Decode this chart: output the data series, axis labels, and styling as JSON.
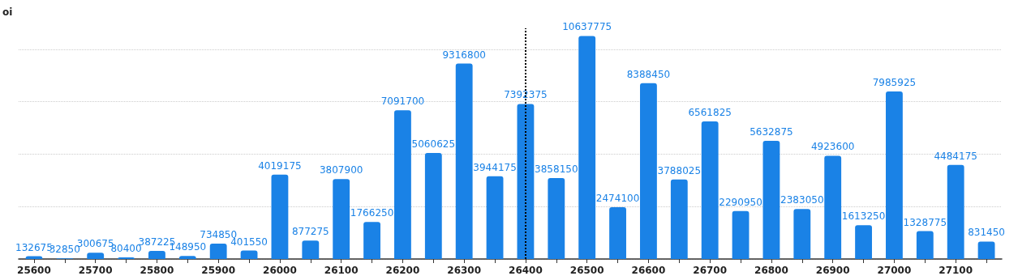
{
  "chart_data": {
    "type": "bar",
    "ylabel": "oi",
    "categories": [
      "25600",
      null,
      "25700",
      null,
      "25800",
      null,
      "25900",
      null,
      "26000",
      null,
      "26100",
      null,
      "26200",
      null,
      "26300",
      null,
      "26400",
      null,
      "26500",
      null,
      "26600",
      null,
      "26700",
      null,
      "26800",
      null,
      "26900",
      null,
      "27000",
      null,
      "27100",
      null
    ],
    "values": [
      132675,
      32850,
      300675,
      80400,
      387225,
      148950,
      734850,
      401550,
      4019175,
      877275,
      3807900,
      1766250,
      7091700,
      5060625,
      9316800,
      3944175,
      7392375,
      3858150,
      10637775,
      2474100,
      8388450,
      3788025,
      6561825,
      2290950,
      5632875,
      2383050,
      4923600,
      1613250,
      7985925,
      1328775,
      4484175,
      831450
    ],
    "color": "#1a82e6",
    "data_labels": true,
    "ylim": [
      0,
      11000000
    ],
    "yticks": [
      {
        "value": 0,
        "label": null
      },
      {
        "value": 2500000,
        "label": null
      },
      {
        "value": 5000000,
        "label": null
      },
      {
        "value": 7500000,
        "label": null
      },
      {
        "value": 10000000,
        "label": null
      }
    ],
    "grid": "y",
    "tick_labels": "x",
    "ref_lines": [
      {
        "axis": "x",
        "value": "26400",
        "line_style": "dotted",
        "color": "#000000"
      }
    ]
  }
}
